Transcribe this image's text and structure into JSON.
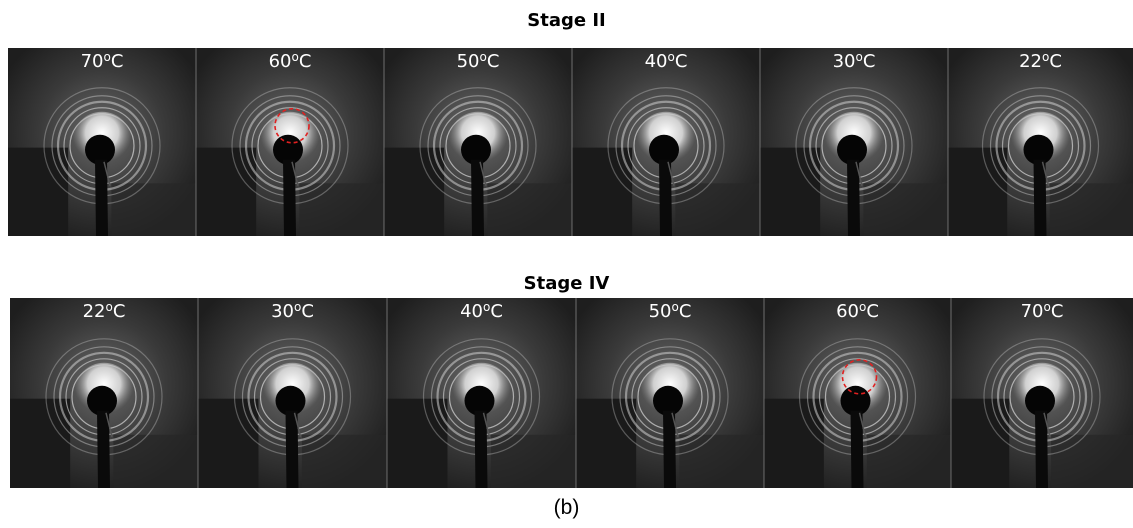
{
  "stage_ii": {
    "title": "Stage II",
    "temperatures": [
      "70",
      "60",
      "50",
      "40",
      "30",
      "22"
    ],
    "marked_index": 1
  },
  "stage_iv": {
    "title": "Stage IV",
    "temperatures": [
      "22",
      "30",
      "40",
      "50",
      "60",
      "70"
    ],
    "marked_index": 4
  },
  "degree_mark": "o",
  "unit": "C",
  "caption": "(b)",
  "colors": {
    "marker_circle": "#e02020",
    "panel_background": "#2e2e2e",
    "ring_glow": "#ffffff"
  }
}
